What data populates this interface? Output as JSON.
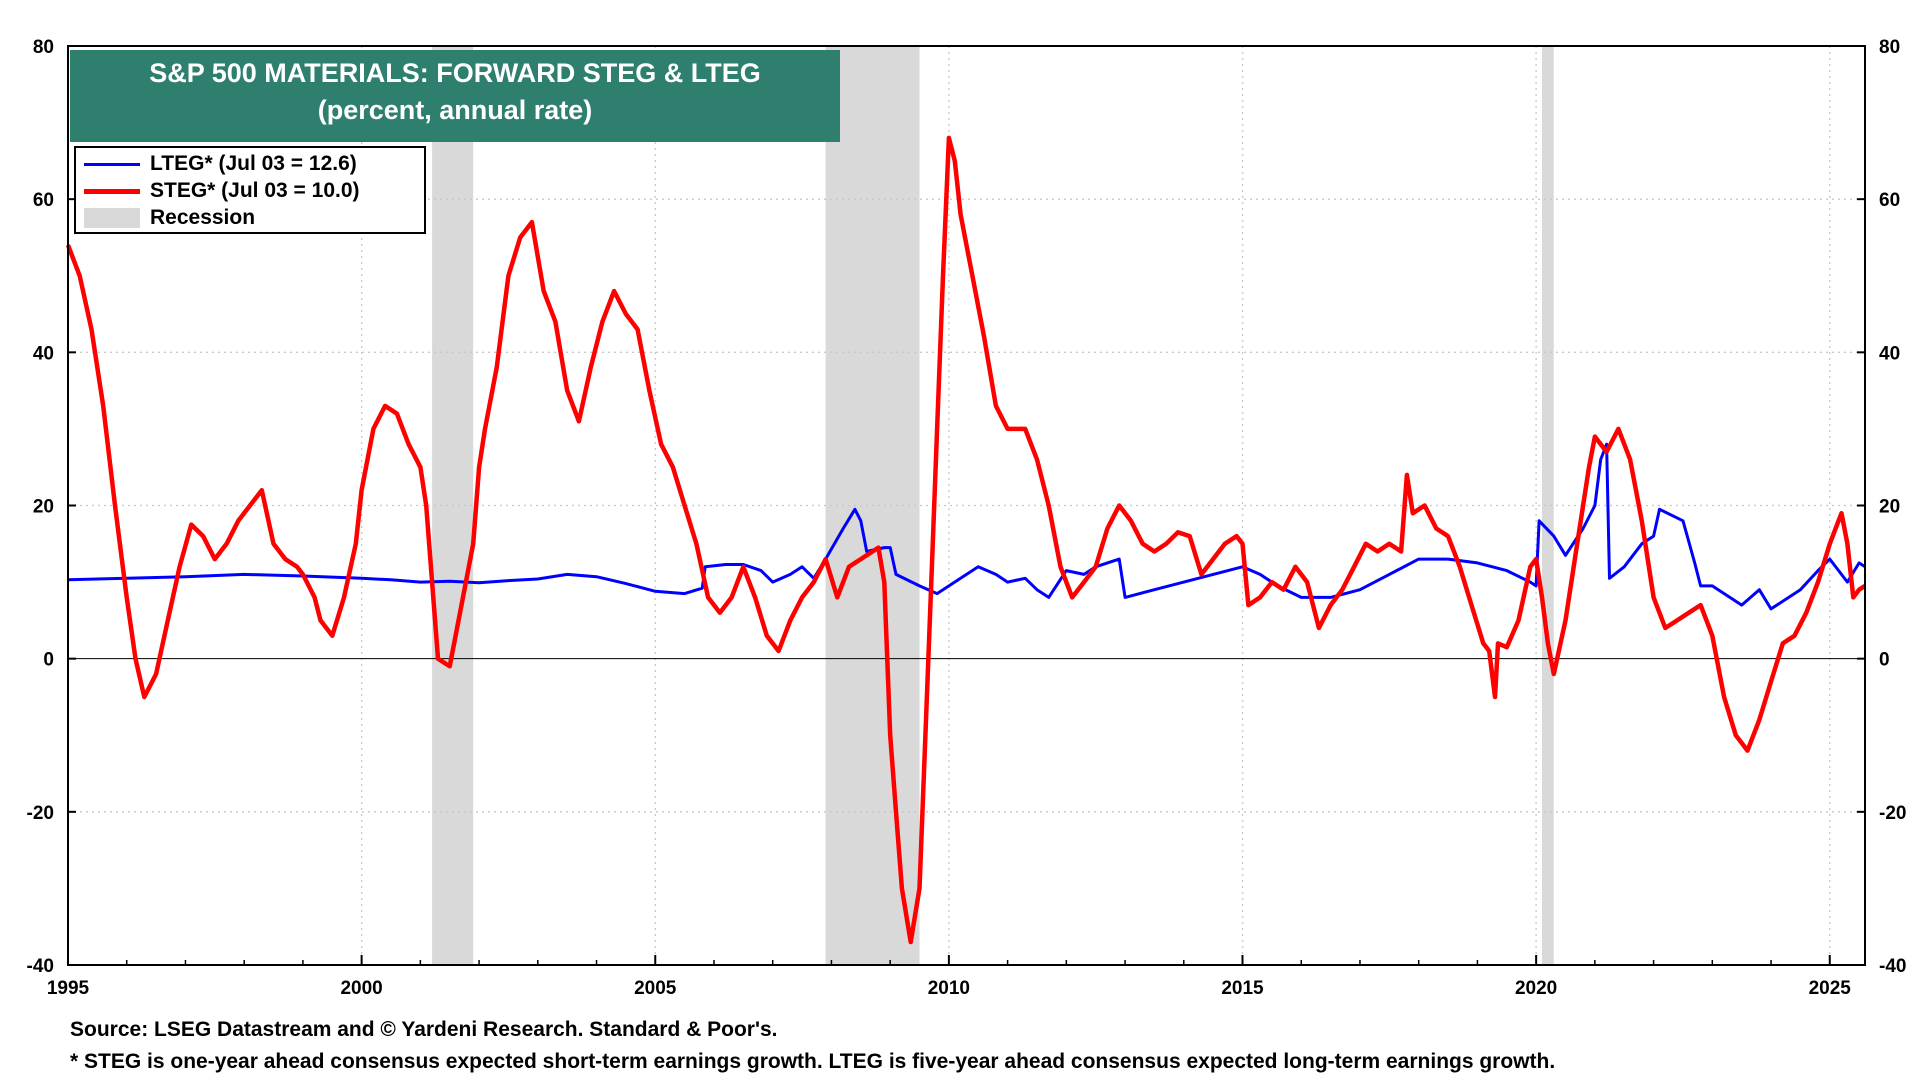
{
  "chart_data": {
    "type": "line",
    "title": "S&P 500 MATERIALS: FORWARD STEG & LTEG",
    "subtitle": "(percent, annual rate)",
    "xlim": [
      1995,
      2025.6
    ],
    "ylim": [
      -40,
      80
    ],
    "x_ticks": [
      "1995",
      "2000",
      "2005",
      "2010",
      "2015",
      "2020",
      "2025"
    ],
    "y_ticks": [
      "80",
      "60",
      "40",
      "20",
      "0",
      "-20",
      "-40"
    ],
    "grid": true,
    "legend_position": "top-left",
    "legend": {
      "lteg_label": "LTEG* (Jul 03 = 12.6)",
      "steg_label": "STEG* (Jul 03 = 10.0)",
      "recession_label": "Recession"
    },
    "colors": {
      "lteg": "#0000ff",
      "steg": "#ff0000",
      "recession": "#d9d9d9",
      "title_bg": "#2e7f6e"
    },
    "recessions": [
      [
        2001.2,
        2001.9
      ],
      [
        2007.9,
        2009.5
      ],
      [
        2020.1,
        2020.3
      ]
    ],
    "series": [
      {
        "name": "LTEG* (Jul 03 = 12.6)",
        "color": "#0000ff",
        "points": [
          [
            1995.0,
            10.3
          ],
          [
            1996.0,
            10.5
          ],
          [
            1997.0,
            10.7
          ],
          [
            1998.0,
            11.0
          ],
          [
            1999.0,
            10.8
          ],
          [
            2000.0,
            10.5
          ],
          [
            2000.5,
            10.3
          ],
          [
            2001.0,
            10.0
          ],
          [
            2001.5,
            10.1
          ],
          [
            2002.0,
            9.9
          ],
          [
            2002.5,
            10.2
          ],
          [
            2003.0,
            10.4
          ],
          [
            2003.5,
            11.0
          ],
          [
            2004.0,
            10.7
          ],
          [
            2004.5,
            9.8
          ],
          [
            2005.0,
            8.8
          ],
          [
            2005.5,
            8.5
          ],
          [
            2005.8,
            9.2
          ],
          [
            2005.85,
            12.0
          ],
          [
            2006.2,
            12.3
          ],
          [
            2006.5,
            12.3
          ],
          [
            2006.8,
            11.5
          ],
          [
            2007.0,
            10.0
          ],
          [
            2007.3,
            11.0
          ],
          [
            2007.5,
            12.0
          ],
          [
            2007.7,
            10.5
          ],
          [
            2007.9,
            13.0
          ],
          [
            2008.2,
            17.0
          ],
          [
            2008.4,
            19.5
          ],
          [
            2008.5,
            18.0
          ],
          [
            2008.6,
            14.0
          ],
          [
            2008.9,
            14.5
          ],
          [
            2009.0,
            14.5
          ],
          [
            2009.1,
            11.0
          ],
          [
            2009.5,
            9.5
          ],
          [
            2009.8,
            8.5
          ],
          [
            2010.0,
            9.5
          ],
          [
            2010.3,
            11.0
          ],
          [
            2010.5,
            12.0
          ],
          [
            2010.8,
            11.0
          ],
          [
            2011.0,
            10.0
          ],
          [
            2011.3,
            10.5
          ],
          [
            2011.5,
            9.0
          ],
          [
            2011.7,
            8.0
          ],
          [
            2012.0,
            11.5
          ],
          [
            2012.3,
            11.0
          ],
          [
            2012.5,
            12.0
          ],
          [
            2012.7,
            12.5
          ],
          [
            2012.9,
            13.0
          ],
          [
            2013.0,
            8.0
          ],
          [
            2013.5,
            9.0
          ],
          [
            2014.0,
            10.0
          ],
          [
            2014.5,
            11.0
          ],
          [
            2015.0,
            12.0
          ],
          [
            2015.3,
            11.0
          ],
          [
            2015.6,
            9.5
          ],
          [
            2016.0,
            8.0
          ],
          [
            2016.5,
            8.0
          ],
          [
            2017.0,
            9.0
          ],
          [
            2017.5,
            11.0
          ],
          [
            2018.0,
            13.0
          ],
          [
            2018.5,
            13.0
          ],
          [
            2019.0,
            12.5
          ],
          [
            2019.5,
            11.5
          ],
          [
            2019.9,
            10.0
          ],
          [
            2020.0,
            9.5
          ],
          [
            2020.05,
            18.0
          ],
          [
            2020.3,
            16.0
          ],
          [
            2020.5,
            13.5
          ],
          [
            2020.8,
            17.0
          ],
          [
            2021.0,
            20.0
          ],
          [
            2021.1,
            26.0
          ],
          [
            2021.2,
            28.0
          ],
          [
            2021.25,
            10.5
          ],
          [
            2021.5,
            12.0
          ],
          [
            2021.8,
            15.0
          ],
          [
            2022.0,
            16.0
          ],
          [
            2022.1,
            19.5
          ],
          [
            2022.5,
            18.0
          ],
          [
            2022.7,
            12.5
          ],
          [
            2022.8,
            9.5
          ],
          [
            2023.0,
            9.5
          ],
          [
            2023.3,
            8.0
          ],
          [
            2023.5,
            7.0
          ],
          [
            2023.8,
            9.0
          ],
          [
            2024.0,
            6.5
          ],
          [
            2024.3,
            8.0
          ],
          [
            2024.5,
            9.0
          ],
          [
            2024.8,
            11.5
          ],
          [
            2025.0,
            13.0
          ],
          [
            2025.2,
            11.0
          ],
          [
            2025.3,
            10.0
          ],
          [
            2025.5,
            12.5
          ],
          [
            2025.6,
            12.0
          ]
        ]
      },
      {
        "name": "STEG* (Jul 03 = 10.0)",
        "color": "#ff0000",
        "points": [
          [
            1995.0,
            54.0
          ],
          [
            1995.2,
            50.0
          ],
          [
            1995.4,
            43.0
          ],
          [
            1995.6,
            33.0
          ],
          [
            1995.8,
            20.0
          ],
          [
            1996.0,
            8.0
          ],
          [
            1996.15,
            0.0
          ],
          [
            1996.3,
            -5.0
          ],
          [
            1996.5,
            -2.0
          ],
          [
            1996.7,
            5.0
          ],
          [
            1996.9,
            12.0
          ],
          [
            1997.1,
            17.5
          ],
          [
            1997.3,
            16.0
          ],
          [
            1997.5,
            13.0
          ],
          [
            1997.7,
            15.0
          ],
          [
            1997.9,
            18.0
          ],
          [
            1998.1,
            20.0
          ],
          [
            1998.3,
            22.0
          ],
          [
            1998.5,
            15.0
          ],
          [
            1998.7,
            13.0
          ],
          [
            1998.9,
            12.0
          ],
          [
            1999.0,
            11.0
          ],
          [
            1999.2,
            8.0
          ],
          [
            1999.3,
            5.0
          ],
          [
            1999.5,
            3.0
          ],
          [
            1999.7,
            8.0
          ],
          [
            1999.9,
            15.0
          ],
          [
            2000.0,
            22.0
          ],
          [
            2000.2,
            30.0
          ],
          [
            2000.4,
            33.0
          ],
          [
            2000.6,
            32.0
          ],
          [
            2000.8,
            28.0
          ],
          [
            2001.0,
            25.0
          ],
          [
            2001.1,
            20.0
          ],
          [
            2001.2,
            10.0
          ],
          [
            2001.3,
            0.0
          ],
          [
            2001.5,
            -1.0
          ],
          [
            2001.7,
            7.0
          ],
          [
            2001.9,
            15.0
          ],
          [
            2002.0,
            25.0
          ],
          [
            2002.1,
            30.0
          ],
          [
            2002.3,
            38.0
          ],
          [
            2002.5,
            50.0
          ],
          [
            2002.7,
            55.0
          ],
          [
            2002.9,
            57.0
          ],
          [
            2003.1,
            48.0
          ],
          [
            2003.3,
            44.0
          ],
          [
            2003.5,
            35.0
          ],
          [
            2003.7,
            31.0
          ],
          [
            2003.9,
            38.0
          ],
          [
            2004.1,
            44.0
          ],
          [
            2004.3,
            48.0
          ],
          [
            2004.5,
            45.0
          ],
          [
            2004.7,
            43.0
          ],
          [
            2004.9,
            35.0
          ],
          [
            2005.1,
            28.0
          ],
          [
            2005.3,
            25.0
          ],
          [
            2005.5,
            20.0
          ],
          [
            2005.7,
            15.0
          ],
          [
            2005.9,
            8.0
          ],
          [
            2006.1,
            6.0
          ],
          [
            2006.3,
            8.0
          ],
          [
            2006.5,
            12.0
          ],
          [
            2006.7,
            8.0
          ],
          [
            2006.9,
            3.0
          ],
          [
            2007.1,
            1.0
          ],
          [
            2007.3,
            5.0
          ],
          [
            2007.5,
            8.0
          ],
          [
            2007.7,
            10.0
          ],
          [
            2007.9,
            13.0
          ],
          [
            2008.1,
            8.0
          ],
          [
            2008.3,
            12.0
          ],
          [
            2008.5,
            13.0
          ],
          [
            2008.7,
            14.0
          ],
          [
            2008.8,
            14.5
          ],
          [
            2008.9,
            10.0
          ],
          [
            2009.0,
            -10.0
          ],
          [
            2009.1,
            -20.0
          ],
          [
            2009.2,
            -30.0
          ],
          [
            2009.35,
            -37.0
          ],
          [
            2009.5,
            -30.0
          ],
          [
            2009.6,
            -10.0
          ],
          [
            2009.7,
            10.0
          ],
          [
            2009.8,
            30.0
          ],
          [
            2009.9,
            50.0
          ],
          [
            2010.0,
            68.0
          ],
          [
            2010.1,
            65.0
          ],
          [
            2010.2,
            58.0
          ],
          [
            2010.4,
            50.0
          ],
          [
            2010.6,
            42.0
          ],
          [
            2010.8,
            33.0
          ],
          [
            2011.0,
            30.0
          ],
          [
            2011.3,
            30.0
          ],
          [
            2011.5,
            26.0
          ],
          [
            2011.7,
            20.0
          ],
          [
            2011.9,
            12.0
          ],
          [
            2012.1,
            8.0
          ],
          [
            2012.3,
            10.0
          ],
          [
            2012.5,
            12.0
          ],
          [
            2012.7,
            17.0
          ],
          [
            2012.9,
            20.0
          ],
          [
            2013.1,
            18.0
          ],
          [
            2013.3,
            15.0
          ],
          [
            2013.5,
            14.0
          ],
          [
            2013.7,
            15.0
          ],
          [
            2013.9,
            16.5
          ],
          [
            2014.1,
            16.0
          ],
          [
            2014.3,
            11.0
          ],
          [
            2014.5,
            13.0
          ],
          [
            2014.7,
            15.0
          ],
          [
            2014.9,
            16.0
          ],
          [
            2015.0,
            15.0
          ],
          [
            2015.1,
            7.0
          ],
          [
            2015.3,
            8.0
          ],
          [
            2015.5,
            10.0
          ],
          [
            2015.7,
            9.0
          ],
          [
            2015.9,
            12.0
          ],
          [
            2016.1,
            10.0
          ],
          [
            2016.3,
            4.0
          ],
          [
            2016.5,
            7.0
          ],
          [
            2016.7,
            9.0
          ],
          [
            2016.9,
            12.0
          ],
          [
            2017.1,
            15.0
          ],
          [
            2017.3,
            14.0
          ],
          [
            2017.5,
            15.0
          ],
          [
            2017.7,
            14.0
          ],
          [
            2017.8,
            24.0
          ],
          [
            2017.9,
            19.0
          ],
          [
            2018.1,
            20.0
          ],
          [
            2018.3,
            17.0
          ],
          [
            2018.5,
            16.0
          ],
          [
            2018.7,
            12.0
          ],
          [
            2018.9,
            7.0
          ],
          [
            2019.1,
            2.0
          ],
          [
            2019.2,
            1.0
          ],
          [
            2019.3,
            -5.0
          ],
          [
            2019.35,
            2.0
          ],
          [
            2019.5,
            1.5
          ],
          [
            2019.7,
            5.0
          ],
          [
            2019.9,
            12.0
          ],
          [
            2020.0,
            13.0
          ],
          [
            2020.1,
            8.0
          ],
          [
            2020.2,
            2.0
          ],
          [
            2020.3,
            -2.0
          ],
          [
            2020.5,
            5.0
          ],
          [
            2020.7,
            15.0
          ],
          [
            2020.9,
            25.0
          ],
          [
            2021.0,
            29.0
          ],
          [
            2021.2,
            27.0
          ],
          [
            2021.4,
            30.0
          ],
          [
            2021.6,
            26.0
          ],
          [
            2021.8,
            18.0
          ],
          [
            2022.0,
            8.0
          ],
          [
            2022.2,
            4.0
          ],
          [
            2022.4,
            5.0
          ],
          [
            2022.6,
            6.0
          ],
          [
            2022.8,
            7.0
          ],
          [
            2023.0,
            3.0
          ],
          [
            2023.2,
            -5.0
          ],
          [
            2023.4,
            -10.0
          ],
          [
            2023.6,
            -12.0
          ],
          [
            2023.8,
            -8.0
          ],
          [
            2024.0,
            -3.0
          ],
          [
            2024.2,
            2.0
          ],
          [
            2024.4,
            3.0
          ],
          [
            2024.6,
            6.0
          ],
          [
            2024.8,
            10.0
          ],
          [
            2025.0,
            15.0
          ],
          [
            2025.1,
            17.0
          ],
          [
            2025.2,
            19.0
          ],
          [
            2025.3,
            15.0
          ],
          [
            2025.4,
            8.0
          ],
          [
            2025.5,
            9.0
          ],
          [
            2025.6,
            9.5
          ]
        ]
      }
    ]
  },
  "footer": {
    "source": "Source: LSEG Datastream and © Yardeni Research. Standard & Poor's.",
    "note": "* STEG is one-year ahead consensus expected short-term earnings growth. LTEG is five-year ahead consensus expected long-term earnings growth."
  }
}
